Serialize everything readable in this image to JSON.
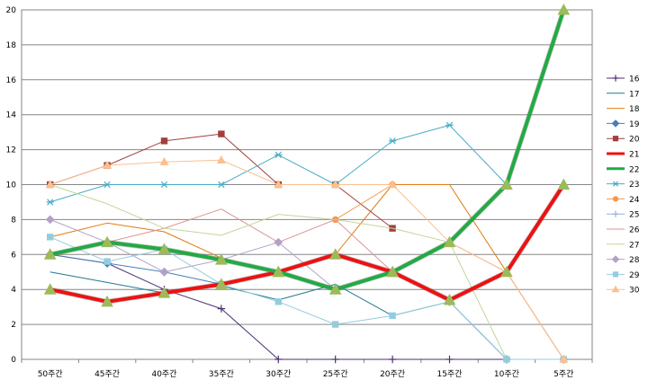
{
  "chart_data": {
    "type": "line",
    "categories": [
      "50주간",
      "45주간",
      "40주간",
      "35주간",
      "30주간",
      "25주간",
      "20주간",
      "15주간",
      "10주간",
      "5주간"
    ],
    "ylim": [
      0,
      20
    ],
    "yticks": [
      0,
      2,
      4,
      6,
      8,
      10,
      12,
      14,
      16,
      18,
      20
    ],
    "grid": true,
    "legend_position": "right",
    "series": [
      {
        "name": "16",
        "color": "#4b2f72",
        "marker": "plus",
        "width": 1,
        "values": [
          6.0,
          5.5,
          4.0,
          2.9,
          0,
          0,
          0,
          0,
          0,
          0
        ]
      },
      {
        "name": "17",
        "color": "#1f7a8c",
        "marker": "none",
        "width": 1,
        "values": [
          5.0,
          4.4,
          3.8,
          4.2,
          3.4,
          4.3,
          2.5,
          3.3,
          0,
          0
        ]
      },
      {
        "name": "18",
        "color": "#e07b10",
        "marker": "none",
        "width": 1,
        "values": [
          7.0,
          7.8,
          7.3,
          5.8,
          5.0,
          6.0,
          10.0,
          10.0,
          5.0,
          0
        ]
      },
      {
        "name": "19",
        "color": "#4a7ebb",
        "marker": "diamond",
        "width": 1,
        "values": [
          6.0,
          5.5,
          5.0,
          4.3,
          5.0,
          4.0,
          5.0,
          3.3,
          0,
          0
        ]
      },
      {
        "name": "20",
        "color": "#a0413e",
        "marker": "square",
        "width": 1,
        "values": [
          10.0,
          11.1,
          12.5,
          12.9,
          10.0,
          10.0,
          7.5,
          null,
          null,
          null
        ]
      },
      {
        "name": "21",
        "color": "#ee1111",
        "marker": "none",
        "width": 4,
        "values": [
          4.0,
          3.3,
          3.8,
          4.3,
          5.0,
          6.0,
          5.0,
          3.4,
          5.0,
          10.0
        ]
      },
      {
        "name": "22",
        "color": "#22aa44",
        "marker": "none",
        "width": 4,
        "values": [
          6.0,
          6.7,
          6.3,
          5.7,
          5.0,
          4.0,
          5.0,
          6.7,
          10.0,
          20.0
        ]
      },
      {
        "name": "23",
        "color": "#4bacc6",
        "marker": "star",
        "width": 1,
        "values": [
          9.0,
          10.0,
          10.0,
          10.0,
          11.7,
          10.0,
          12.5,
          13.4,
          10.0,
          null
        ]
      },
      {
        "name": "24",
        "color": "#f79646",
        "marker": "circle",
        "width": 1,
        "values": [
          6.0,
          null,
          null,
          null,
          null,
          8.0,
          10.0,
          null,
          null,
          null
        ]
      },
      {
        "name": "25",
        "color": "#95b3d7",
        "marker": "plus",
        "width": 1,
        "values": [
          null,
          null,
          null,
          null,
          null,
          null,
          null,
          null,
          null,
          null
        ]
      },
      {
        "name": "26",
        "color": "#d99694",
        "marker": "none",
        "width": 1,
        "values": [
          6.0,
          6.7,
          7.5,
          8.6,
          6.7,
          8.0,
          5.0,
          6.7,
          5.0,
          0
        ]
      },
      {
        "name": "27",
        "color": "#c3d69b",
        "marker": "none",
        "width": 1,
        "values": [
          10.0,
          8.9,
          7.5,
          7.1,
          8.3,
          8.0,
          7.5,
          6.7,
          0,
          0
        ]
      },
      {
        "name": "28",
        "color": "#b3a2c7",
        "marker": "diamond",
        "width": 1,
        "values": [
          8.0,
          6.7,
          5.0,
          5.7,
          6.7,
          4.0,
          5.0,
          3.3,
          0,
          0
        ]
      },
      {
        "name": "29",
        "color": "#93cddd",
        "marker": "square",
        "width": 1,
        "values": [
          7.0,
          5.6,
          6.3,
          4.3,
          3.3,
          2.0,
          2.5,
          3.3,
          0,
          0
        ]
      },
      {
        "name": "30",
        "color": "#fac090",
        "marker": "triangle",
        "width": 1,
        "values": [
          10.0,
          11.1,
          11.3,
          11.4,
          10.0,
          10.0,
          10.0,
          6.7,
          5.0,
          0
        ]
      }
    ]
  }
}
